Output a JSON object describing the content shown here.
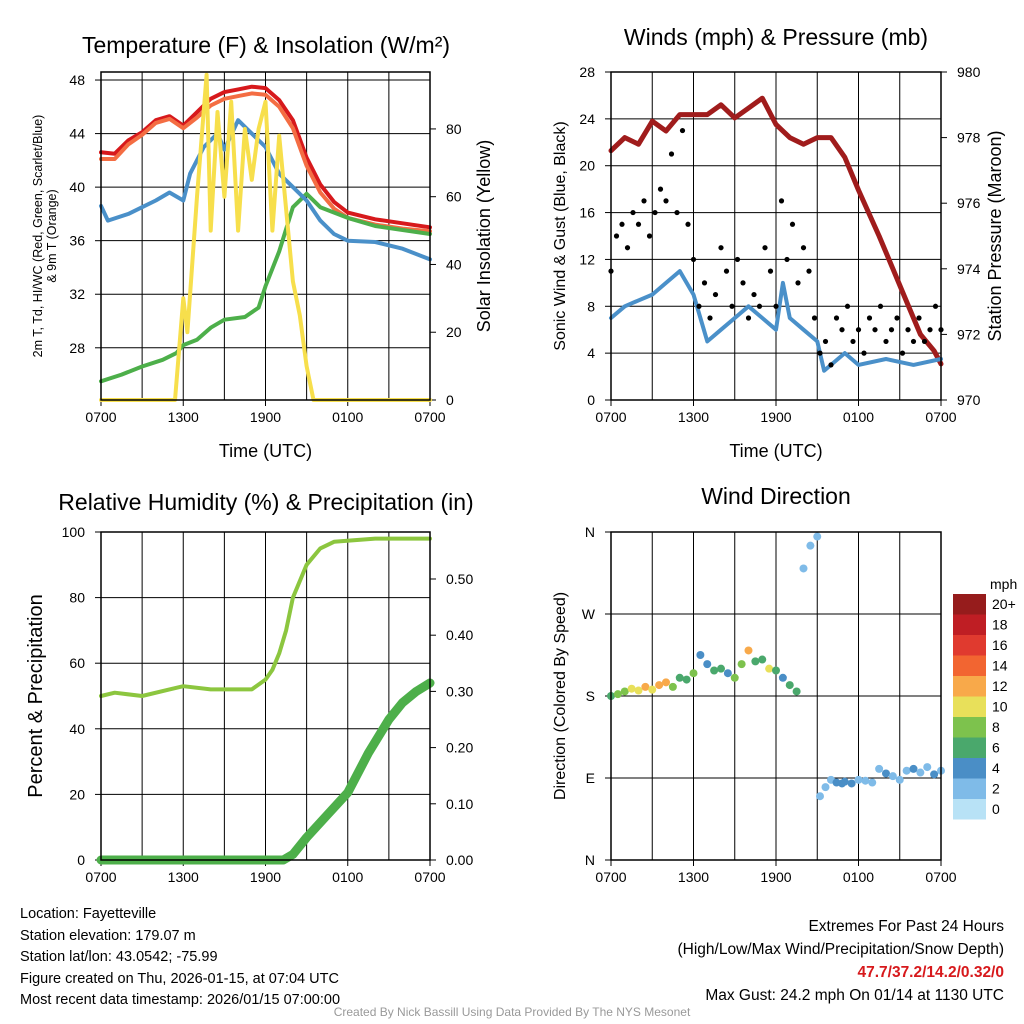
{
  "chart_data": [
    {
      "type": "line",
      "title": "Temperature (F) & Insolation (W/m²)",
      "xlabel": "Time (UTC)",
      "ylabel": [
        "2m T, Td, HI/WC (Red, Green, Scarlet/Blue)",
        "& 9m T (Orange)"
      ],
      "ylabel_right": "Solar Insolation (Yellow)",
      "x_tick_labels": [
        "0700",
        "1300",
        "1900",
        "0100",
        "0700"
      ],
      "y_ticks": [
        28,
        32,
        36,
        40,
        44,
        48
      ],
      "y_ticks_right": [
        0,
        20,
        40,
        60,
        80
      ],
      "xlim_hours": [
        0,
        24
      ],
      "ylim": [
        24.1,
        48.6
      ],
      "ylim_right": [
        0,
        96.8
      ],
      "series": [
        {
          "name": "2m T",
          "color": "#d7191c",
          "axis": "left",
          "x": [
            0,
            1,
            2,
            3,
            4,
            5,
            6,
            7,
            8,
            9,
            10,
            11,
            12,
            13,
            14,
            15,
            16,
            17,
            18,
            20,
            22,
            24
          ],
          "y": [
            42.6,
            42.5,
            43.5,
            44.1,
            45,
            45.3,
            44.6,
            45.6,
            46.6,
            47.1,
            47.3,
            47.5,
            47.4,
            46.5,
            45,
            42.2,
            40.2,
            38.9,
            38.1,
            37.6,
            37.3,
            37.0
          ]
        },
        {
          "name": "9m T",
          "color": "#f46d43",
          "axis": "left",
          "x": [
            0,
            1,
            2,
            3,
            4,
            5,
            6,
            7,
            8,
            9,
            10,
            11,
            12,
            13,
            14,
            15,
            16,
            17,
            18,
            20,
            22,
            24
          ],
          "y": [
            42.1,
            42.1,
            43.2,
            43.9,
            44.8,
            45.1,
            44.4,
            45.2,
            46.1,
            46.6,
            46.8,
            47.0,
            46.9,
            46.0,
            44.4,
            41.6,
            39.6,
            38.4,
            37.7,
            37.2,
            36.9,
            36.7
          ]
        },
        {
          "name": "Td",
          "color": "#4daf4a",
          "axis": "left",
          "x": [
            0,
            1.5,
            3,
            4.5,
            5.5,
            6,
            7,
            8,
            9,
            10.5,
            11.5,
            12,
            13,
            14,
            15,
            16,
            18,
            20,
            22,
            24
          ],
          "y": [
            25.5,
            26,
            26.6,
            27.1,
            27.6,
            28.2,
            28.6,
            29.5,
            30.1,
            30.3,
            31,
            32.6,
            35.2,
            38.5,
            39.5,
            38.5,
            37.7,
            37.1,
            36.8,
            36.5
          ]
        },
        {
          "name": "HI/WC",
          "color": "#4a90c9",
          "axis": "left",
          "x": [
            0,
            0.5,
            2,
            3,
            4,
            5,
            6,
            6.5,
            7.5,
            8.5,
            9,
            10,
            11,
            12,
            13,
            14,
            15,
            16,
            17,
            18,
            20,
            22,
            24
          ],
          "y": [
            38.6,
            37.5,
            38,
            38.5,
            39,
            39.6,
            39,
            41,
            43,
            44,
            42.8,
            45,
            44,
            43,
            41,
            40,
            39,
            37.5,
            36.5,
            36,
            35.9,
            35.4,
            34.6
          ]
        },
        {
          "name": "Solar Insolation",
          "color": "#f7df4c",
          "axis": "right",
          "x": [
            0,
            5.4,
            6,
            6.3,
            7,
            7.7,
            8,
            8.5,
            9,
            9.5,
            10,
            10.5,
            11,
            11.5,
            12,
            12.5,
            13,
            14,
            14.5,
            15,
            15.5,
            24
          ],
          "y": [
            0,
            0,
            30,
            20,
            60,
            96,
            50,
            85,
            60,
            88,
            50,
            80,
            65,
            80,
            88,
            50,
            78,
            35,
            25,
            10,
            0,
            0
          ]
        }
      ]
    },
    {
      "type": "line",
      "title": "Winds (mph) & Pressure (mb)",
      "xlabel": "Time (UTC)",
      "ylabel": "Sonic Wind & Gust (Blue, Black)",
      "ylabel_right": "Station Pressure (Maroon)",
      "x_tick_labels": [
        "0700",
        "1300",
        "1900",
        "0100",
        "0700"
      ],
      "y_ticks": [
        0,
        4,
        8,
        12,
        16,
        20,
        24,
        28
      ],
      "y_ticks_right": [
        970,
        972,
        974,
        976,
        978,
        980
      ],
      "xlim_hours": [
        0,
        24
      ],
      "ylim": [
        0,
        28
      ],
      "ylim_right": [
        970,
        980
      ],
      "series": [
        {
          "name": "Station Pressure",
          "color": "#a01c1c",
          "axis": "right",
          "x": [
            0,
            1,
            2,
            3,
            4,
            5,
            7,
            8,
            9,
            10,
            11,
            12,
            13,
            14,
            15,
            16,
            17,
            18,
            19.5,
            20.5,
            21.5,
            22.5,
            23.5,
            24
          ],
          "y": [
            977.6,
            978,
            977.8,
            978.5,
            978.2,
            978.7,
            978.7,
            979,
            978.6,
            978.9,
            979.2,
            978.4,
            978,
            977.8,
            978,
            978,
            977.4,
            976.4,
            975,
            974,
            973,
            972,
            971.5,
            971.1
          ]
        },
        {
          "name": "Sonic Wind",
          "color": "#4a90c9",
          "axis": "left",
          "x": [
            0,
            1,
            2,
            3,
            4,
            5,
            6,
            6.5,
            7,
            8,
            9,
            10,
            11,
            12,
            12.5,
            13,
            14,
            15,
            15.5,
            16,
            17,
            18,
            20,
            22,
            24
          ],
          "y": [
            7,
            8,
            8.5,
            9,
            10,
            11,
            9,
            7,
            5,
            6,
            7,
            8,
            7,
            6,
            10,
            7,
            6,
            5,
            2.5,
            3,
            4,
            3,
            3.5,
            3,
            3.5
          ]
        },
        {
          "name": "Gust",
          "color": "#000000",
          "axis": "left",
          "kind": "scatter",
          "x": [
            0,
            0.4,
            0.8,
            1.2,
            1.6,
            2,
            2.4,
            2.8,
            3.2,
            3.6,
            4,
            4.4,
            4.8,
            5.2,
            5.6,
            6,
            6.4,
            6.8,
            7.2,
            7.6,
            8,
            8.4,
            8.8,
            9.2,
            9.6,
            10,
            10.4,
            10.8,
            11.2,
            11.6,
            12,
            12.4,
            12.8,
            13.2,
            13.6,
            14,
            14.4,
            14.8,
            15.2,
            15.6,
            16,
            16.4,
            16.8,
            17.2,
            17.6,
            18,
            18.4,
            18.8,
            19.2,
            19.6,
            20,
            20.4,
            20.8,
            21.2,
            21.6,
            22,
            22.4,
            22.8,
            23.2,
            23.6,
            24
          ],
          "y": [
            11,
            14,
            15,
            13,
            16,
            15,
            17,
            14,
            16,
            18,
            17,
            21,
            16,
            23,
            15,
            12,
            8,
            10,
            7,
            9,
            13,
            11,
            8,
            12,
            10,
            7,
            9,
            8,
            13,
            11,
            8,
            17,
            12,
            15,
            10,
            13,
            11,
            7,
            4,
            5,
            3,
            7,
            6,
            8,
            5,
            6,
            4,
            7,
            6,
            8,
            5,
            6,
            7,
            4,
            6,
            5,
            7,
            5,
            6,
            8,
            6
          ]
        }
      ]
    },
    {
      "type": "line",
      "title": "Relative Humidity (%) & Precipitation (in)",
      "ylabel": "Percent & Precipitation",
      "x_tick_labels": [
        "0700",
        "1300",
        "1900",
        "0100",
        "0700"
      ],
      "y_ticks": [
        0,
        20,
        40,
        60,
        80,
        100
      ],
      "y_ticks_right": [
        "0.00",
        "0.10",
        "0.20",
        "0.30",
        "0.40",
        "0.50"
      ],
      "xlim_hours": [
        0,
        24
      ],
      "ylim": [
        0,
        100
      ],
      "ylim_right": [
        0,
        0.5836
      ],
      "series": [
        {
          "name": "Relative Humidity",
          "color": "#8cc63f",
          "axis": "left",
          "x": [
            0,
            1,
            3,
            5,
            6,
            8,
            10,
            11,
            12,
            12.5,
            13,
            13.5,
            14,
            15,
            16,
            17,
            20,
            24
          ],
          "y": [
            50,
            51,
            50,
            52,
            53,
            52,
            52,
            52,
            55,
            58,
            63,
            70,
            80,
            90,
            95,
            97,
            98,
            98
          ]
        },
        {
          "name": "Precipitation",
          "color": "#4daf4a",
          "axis": "right",
          "x": [
            0,
            13.3,
            14,
            15,
            16.5,
            18,
            19.5,
            21,
            22,
            23,
            24
          ],
          "y": [
            0,
            0,
            0.01,
            0.04,
            0.08,
            0.12,
            0.19,
            0.25,
            0.28,
            0.3,
            0.315
          ]
        }
      ]
    },
    {
      "type": "scatter",
      "title": "Wind Direction",
      "ylabel": "Direction (Colored By Speed)",
      "x_tick_labels": [
        "0700",
        "1300",
        "1900",
        "0100",
        "0700"
      ],
      "y_tick_labels": [
        "N",
        "E",
        "S",
        "W",
        "N"
      ],
      "y_ticks": [
        0,
        90,
        180,
        270,
        360
      ],
      "xlim_hours": [
        0,
        24
      ],
      "ylim": [
        0,
        360
      ],
      "legend": {
        "title": "mph",
        "labels": [
          "20+",
          "18",
          "16",
          "14",
          "12",
          "10",
          "8",
          "6",
          "4",
          "2",
          "0"
        ],
        "colors": [
          "#961c1c",
          "#bf1e24",
          "#e03a2f",
          "#f26531",
          "#f8a94a",
          "#e8e05a",
          "#7dc24d",
          "#4aa86c",
          "#4a8ec6",
          "#7fbbe8",
          "#b8e2f6"
        ]
      },
      "points": {
        "x": [
          0,
          0.5,
          1,
          1.5,
          2,
          2.5,
          3,
          3.5,
          4,
          4.5,
          5,
          5.5,
          6,
          6.5,
          7,
          7.5,
          8,
          8.5,
          9,
          9.5,
          10,
          10.5,
          11,
          11.5,
          12,
          12.5,
          13,
          13.5,
          14,
          14.5,
          15,
          15.2,
          15.6,
          16,
          16.4,
          16.8,
          17,
          17.5,
          18,
          18.5,
          19,
          19.5,
          20,
          20.5,
          21,
          21.5,
          22,
          22.5,
          23,
          23.5,
          24
        ],
        "y": [
          180,
          182,
          185,
          188,
          186,
          190,
          187,
          192,
          195,
          190,
          200,
          198,
          205,
          225,
          215,
          208,
          210,
          205,
          200,
          215,
          230,
          218,
          220,
          210,
          208,
          200,
          192,
          185,
          320,
          345,
          355,
          70,
          80,
          88,
          85,
          84,
          86,
          84,
          88,
          87,
          85,
          100,
          95,
          92,
          88,
          98,
          100,
          96,
          102,
          94,
          98
        ],
        "speed": [
          6,
          8,
          9,
          10,
          11,
          12,
          10,
          13,
          12,
          8,
          7,
          6,
          8,
          4,
          5,
          7,
          6,
          5,
          8,
          9,
          12,
          7,
          6,
          10,
          6,
          5,
          7,
          6,
          2,
          2,
          2,
          2,
          2,
          3,
          4,
          4,
          4,
          4,
          3,
          2,
          3,
          2,
          4,
          3,
          2,
          3,
          4,
          3,
          2,
          4,
          3
        ]
      }
    }
  ],
  "footer": {
    "location": "Location: Fayetteville",
    "elevation": "Station elevation: 179.07 m",
    "latlon": "Station lat/lon: 43.0542; -75.99",
    "created": "Figure created on Thu, 2026-01-15, at 07:04 UTC",
    "recent": "Most recent data timestamp: 2026/01/15 07:00:00",
    "extremes_title": "Extremes For Past 24 Hours",
    "extremes_desc": "(High/Low/Max Wind/Precipitation/Snow Depth)",
    "extremes_values": "47.7/37.2/14.2/0.32/0",
    "max_gust": "Max Gust: 24.2 mph On 01/14 at 1130 UTC",
    "credit": "Created By Nick Bassill Using Data Provided By The NYS Mesonet"
  }
}
